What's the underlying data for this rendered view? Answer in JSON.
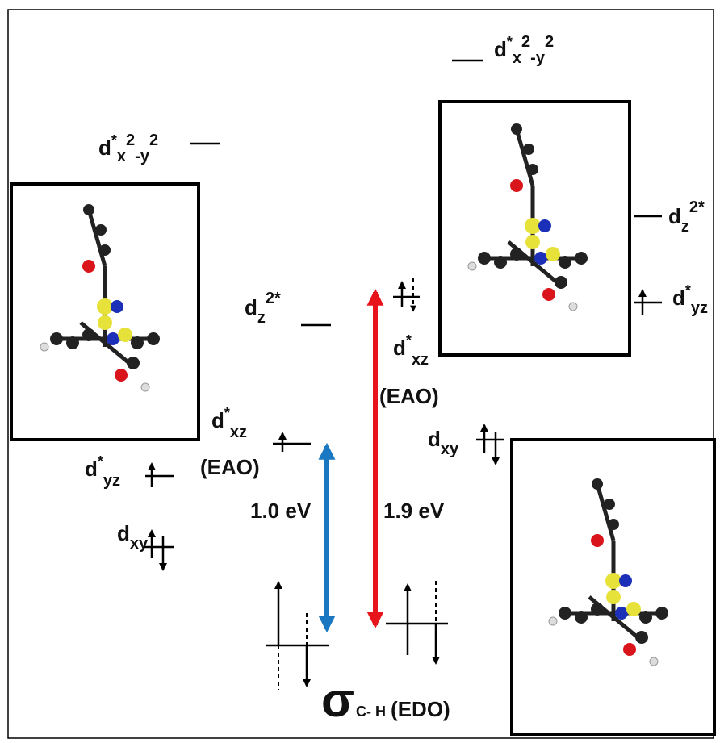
{
  "left": {
    "dx2y2": [
      "d",
      "*",
      "x",
      "2",
      "-y",
      "2"
    ],
    "dz2": [
      "d",
      "z",
      "2*"
    ],
    "dxz": [
      "d",
      "*",
      "xz"
    ],
    "dxz_note": "(EAO)",
    "dyz": [
      "d",
      "*",
      "yz"
    ],
    "dxy": [
      "d",
      "xy"
    ]
  },
  "right": {
    "dx2y2": [
      "d",
      "*",
      "x",
      "2",
      "-y",
      "2"
    ],
    "dz2": [
      "d",
      "z",
      "2*"
    ],
    "dxz": [
      "d",
      "*",
      "xz"
    ],
    "dxz_note": "(EAO)",
    "dyz": [
      "d",
      "*",
      "yz"
    ],
    "dxy": [
      "d",
      "xy"
    ]
  },
  "gaps": [
    "1.0 eV",
    "1.9 eV"
  ],
  "sigma": [
    "σ",
    "C- H",
    "(EDO)"
  ]
}
